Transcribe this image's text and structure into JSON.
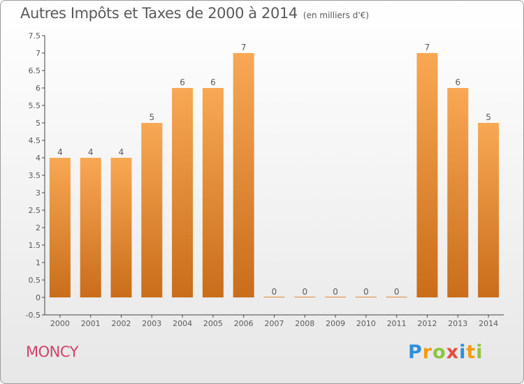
{
  "header": {
    "title": "Autres Impôts et Taxes de 2000 à 2014",
    "subtitle": "(en milliers d'€)"
  },
  "footer": {
    "place": "MONCY",
    "logo_text": "Proxiti"
  },
  "colors": {
    "bar_light": "#f8a854",
    "bar_dark": "#c96d1a",
    "text": "#5a5a5a",
    "place": "#d0426a"
  },
  "chart_data": {
    "type": "bar",
    "categories": [
      "2000",
      "2001",
      "2002",
      "2003",
      "2004",
      "2005",
      "2006",
      "2007",
      "2008",
      "2009",
      "2010",
      "2011",
      "2012",
      "2013",
      "2014"
    ],
    "values": [
      4,
      4,
      4,
      5,
      6,
      6,
      7,
      0,
      0,
      0,
      0,
      0,
      7,
      6,
      5
    ],
    "data_labels": [
      "4",
      "4",
      "4",
      "5",
      "6",
      "6",
      "7",
      "0",
      "0",
      "0",
      "0",
      "0",
      "7",
      "6",
      "5"
    ],
    "ylim": [
      -0.5,
      7.5
    ],
    "yticks": [
      -0.5,
      0,
      0.5,
      1,
      1.5,
      2,
      2.5,
      3,
      3.5,
      4,
      4.5,
      5,
      5.5,
      6,
      6.5,
      7,
      7.5
    ],
    "ytick_labels": [
      "-0.5",
      "0",
      "0.5",
      "1",
      "1.5",
      "2",
      "2.5",
      "3",
      "3.5",
      "4",
      "4.5",
      "5",
      "5.5",
      "6",
      "6.5",
      "7",
      "7.5"
    ],
    "xlabel": "",
    "ylabel": "",
    "grid": false
  }
}
